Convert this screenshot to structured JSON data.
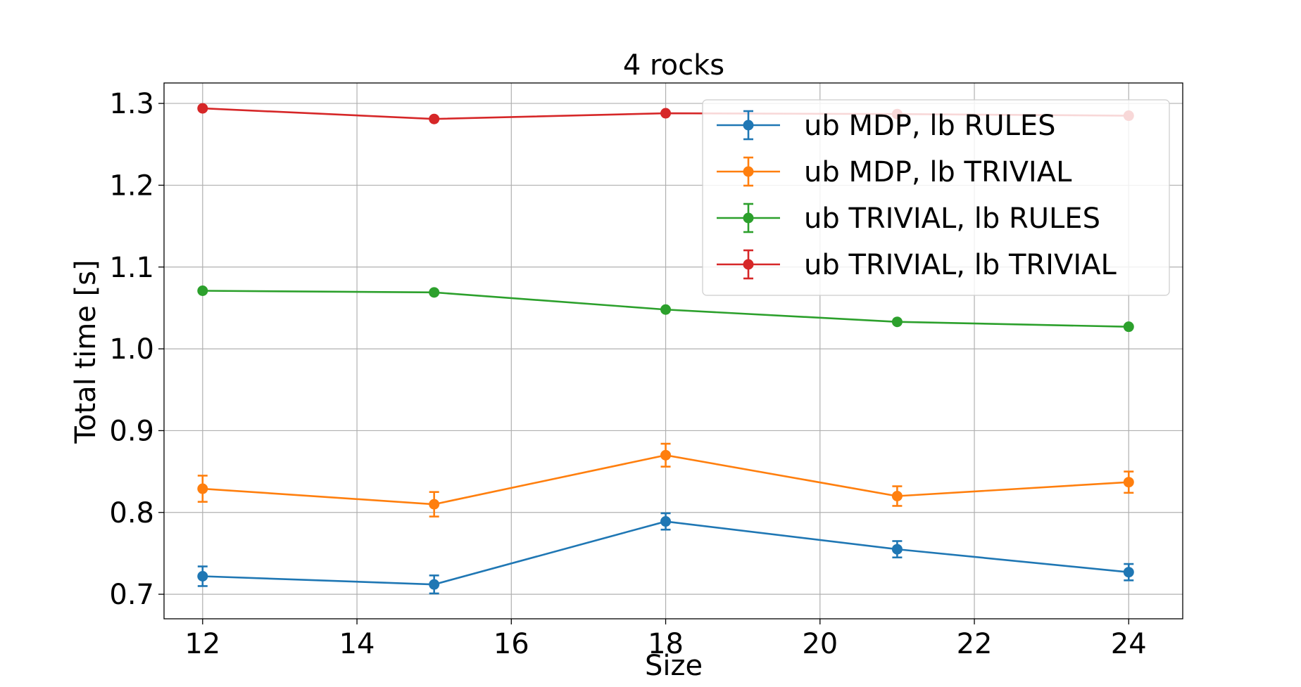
{
  "chart_data": {
    "type": "line",
    "title": "4 rocks",
    "xlabel": "Size",
    "ylabel": "Total time [s]",
    "xlim": [
      11.5,
      24.7
    ],
    "ylim": [
      0.67,
      1.325
    ],
    "xticks": [
      12,
      14,
      16,
      18,
      20,
      22,
      24
    ],
    "xtick_labels": [
      "12",
      "14",
      "16",
      "18",
      "20",
      "22",
      "24"
    ],
    "yticks": [
      0.7,
      0.8,
      0.9,
      1.0,
      1.1,
      1.2,
      1.3
    ],
    "ytick_labels": [
      "0.7",
      "0.8",
      "0.9",
      "1.0",
      "1.1",
      "1.2",
      "1.3"
    ],
    "grid": true,
    "legend_position": "top-right",
    "x": [
      12,
      15,
      18,
      21,
      24
    ],
    "series": [
      {
        "name": "ub MDP, lb RULES",
        "color": "#1f77b4",
        "values": [
          0.722,
          0.712,
          0.789,
          0.755,
          0.727
        ],
        "errors": [
          0.012,
          0.011,
          0.01,
          0.01,
          0.01
        ]
      },
      {
        "name": "ub MDP, lb TRIVIAL",
        "color": "#ff7f0e",
        "values": [
          0.829,
          0.81,
          0.87,
          0.82,
          0.837
        ],
        "errors": [
          0.016,
          0.015,
          0.014,
          0.012,
          0.013
        ]
      },
      {
        "name": "ub TRIVIAL, lb RULES",
        "color": "#2ca02c",
        "values": [
          1.071,
          1.069,
          1.048,
          1.033,
          1.027
        ],
        "errors": [
          0,
          0,
          0,
          0,
          0
        ],
        "legend_error": 0.02
      },
      {
        "name": "ub TRIVIAL, lb TRIVIAL",
        "color": "#d62728",
        "values": [
          1.294,
          1.281,
          1.288,
          1.287,
          1.285
        ],
        "errors": [
          0,
          0,
          0,
          0,
          0
        ],
        "legend_error": 0.02
      }
    ]
  }
}
